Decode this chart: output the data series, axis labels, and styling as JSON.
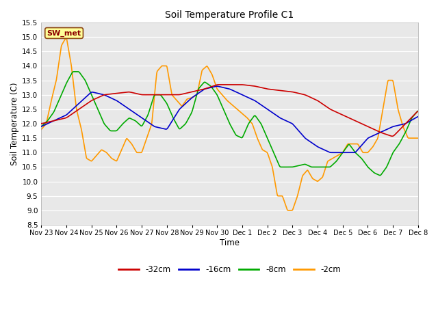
{
  "title": "Soil Temperature Profile C1",
  "xlabel": "Time",
  "ylabel": "Soil Temperature (C)",
  "ylim": [
    8.5,
    15.5
  ],
  "yticks": [
    8.5,
    9.0,
    9.5,
    10.0,
    10.5,
    11.0,
    11.5,
    12.0,
    12.5,
    13.0,
    13.5,
    14.0,
    14.5,
    15.0,
    15.5
  ],
  "figure_bg": "#ffffff",
  "axes_bg": "#e8e8e8",
  "annotation_text": "SW_met",
  "annotation_color": "#8B0000",
  "annotation_bg": "#ffff99",
  "annotation_border": "#8B4513",
  "series": {
    "-32cm": {
      "color": "#cc0000",
      "linewidth": 1.2
    },
    "-16cm": {
      "color": "#0000cc",
      "linewidth": 1.2
    },
    "-8cm": {
      "color": "#00aa00",
      "linewidth": 1.2
    },
    "-2cm": {
      "color": "#ff9900",
      "linewidth": 1.2
    }
  },
  "x_tick_labels": [
    "Nov 23",
    "Nov 24",
    "Nov 25",
    "Nov 26",
    "Nov 27",
    "Nov 28",
    "Nov 29",
    "Nov 30",
    "Dec 1",
    "Dec 2",
    "Dec 3",
    "Dec 4",
    "Dec 5",
    "Dec 6",
    "Dec 7",
    "Dec 8"
  ],
  "legend_labels": [
    "-32cm",
    "-16cm",
    "-8cm",
    "-2cm"
  ]
}
